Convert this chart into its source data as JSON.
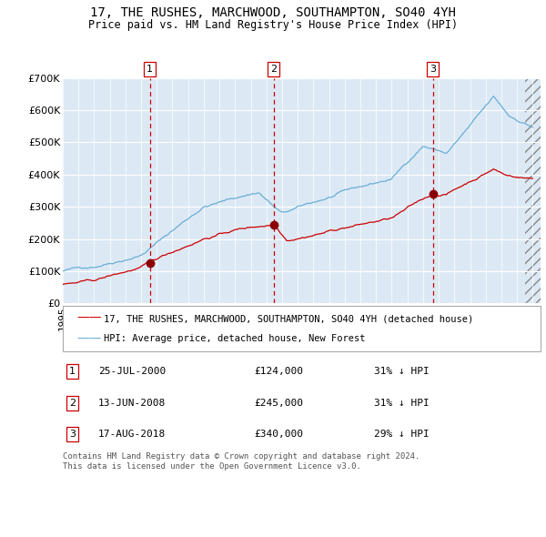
{
  "title": "17, THE RUSHES, MARCHWOOD, SOUTHAMPTON, SO40 4YH",
  "subtitle": "Price paid vs. HM Land Registry's House Price Index (HPI)",
  "ylim": [
    0,
    700000
  ],
  "yticks": [
    0,
    100000,
    200000,
    300000,
    400000,
    500000,
    600000,
    700000
  ],
  "ytick_labels": [
    "£0",
    "£100K",
    "£200K",
    "£300K",
    "£400K",
    "£500K",
    "£600K",
    "£700K"
  ],
  "xlim_start": 1995.0,
  "xlim_end": 2025.5,
  "plot_bg_color": "#dce9f5",
  "hpi_line_color": "#6aaed6",
  "property_line_color": "#cc0000",
  "sale_marker_color": "#8b0000",
  "dashed_line_color": "#cc0000",
  "sales": [
    {
      "num": 1,
      "date_year": 2000.56,
      "price": 124000,
      "label": "1"
    },
    {
      "num": 2,
      "date_year": 2008.45,
      "price": 245000,
      "label": "2"
    },
    {
      "num": 3,
      "date_year": 2018.63,
      "price": 340000,
      "label": "3"
    }
  ],
  "legend_entries": [
    "17, THE RUSHES, MARCHWOOD, SOUTHAMPTON, SO40 4YH (detached house)",
    "HPI: Average price, detached house, New Forest"
  ],
  "table_rows": [
    {
      "num": "1",
      "date": "25-JUL-2000",
      "price": "£124,000",
      "hpi": "31% ↓ HPI"
    },
    {
      "num": "2",
      "date": "13-JUN-2008",
      "price": "£245,000",
      "hpi": "31% ↓ HPI"
    },
    {
      "num": "3",
      "date": "17-AUG-2018",
      "price": "£340,000",
      "hpi": "29% ↓ HPI"
    }
  ],
  "footnote": "Contains HM Land Registry data © Crown copyright and database right 2024.\nThis data is licensed under the Open Government Licence v3.0."
}
